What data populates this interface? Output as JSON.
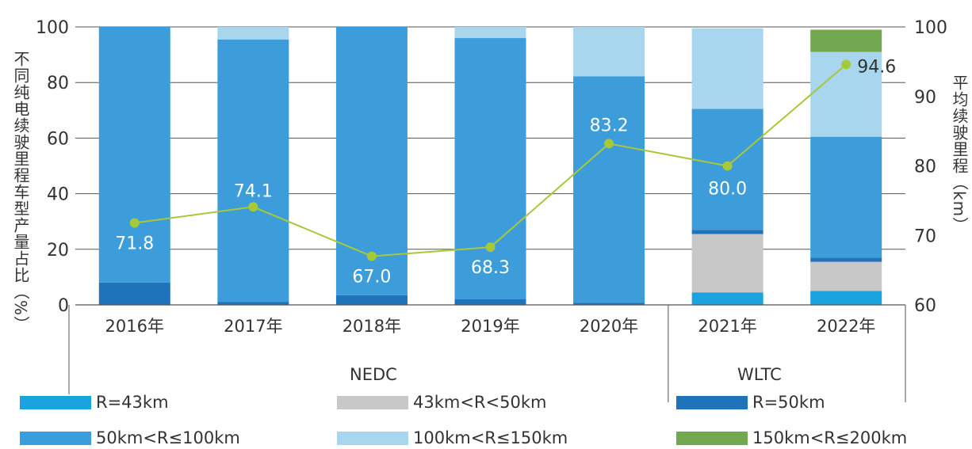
{
  "chart_data": {
    "type": "bar",
    "stacked": true,
    "categories": [
      "2016年",
      "2017年",
      "2018年",
      "2019年",
      "2020年",
      "2021年",
      "2022年"
    ],
    "groups": [
      {
        "label": "NEDC",
        "categories": [
          "2016年",
          "2017年",
          "2018年",
          "2019年",
          "2020年"
        ]
      },
      {
        "label": "WLTC",
        "categories": [
          "2021年",
          "2022年"
        ]
      }
    ],
    "series": [
      {
        "name": "R=43km",
        "color": "#1aa3df",
        "values": [
          0,
          0,
          0,
          0,
          0,
          4.5,
          5
        ]
      },
      {
        "name": "43km<R<50km",
        "color": "#c8c8c8",
        "values": [
          0,
          0,
          0,
          0,
          0,
          21,
          10.5
        ]
      },
      {
        "name": "R=50km",
        "color": "#1f73bb",
        "values": [
          8,
          1,
          3.5,
          2,
          0.7,
          1.5,
          1.5
        ]
      },
      {
        "name": "50km<R≤100km",
        "color": "#3d9dda",
        "values": [
          92,
          94.5,
          96.5,
          94,
          81.5,
          43.5,
          43.5
        ]
      },
      {
        "name": "100km<R≤150km",
        "color": "#a8d6ef",
        "values": [
          0,
          4.5,
          0,
          4,
          17.8,
          29,
          30.5
        ]
      },
      {
        "name": "150km<R≤200km",
        "color": "#72a84f",
        "values": [
          0,
          0,
          0,
          0,
          0,
          0,
          8
        ]
      }
    ],
    "line": {
      "name": "平均续驶里程（km）",
      "color": "#a6c93a",
      "values": [
        71.8,
        74.1,
        67.0,
        68.3,
        83.2,
        80.0,
        94.6
      ],
      "labels": [
        "71.8",
        "74.1",
        "67.0",
        "68.3",
        "83.2",
        "80.0",
        "94.6"
      ]
    },
    "ylabel": "不同纯电续驶里程车型产量占比（%）",
    "y2label": "平均续驶里程（km）",
    "ylim": [
      0,
      100
    ],
    "y2lim": [
      60,
      100
    ],
    "yticks": [
      "0",
      "20",
      "40",
      "60",
      "80",
      "100"
    ],
    "y2ticks": [
      "60",
      "70",
      "80",
      "90",
      "100"
    ],
    "grid": true,
    "legend_position": "bottom"
  }
}
